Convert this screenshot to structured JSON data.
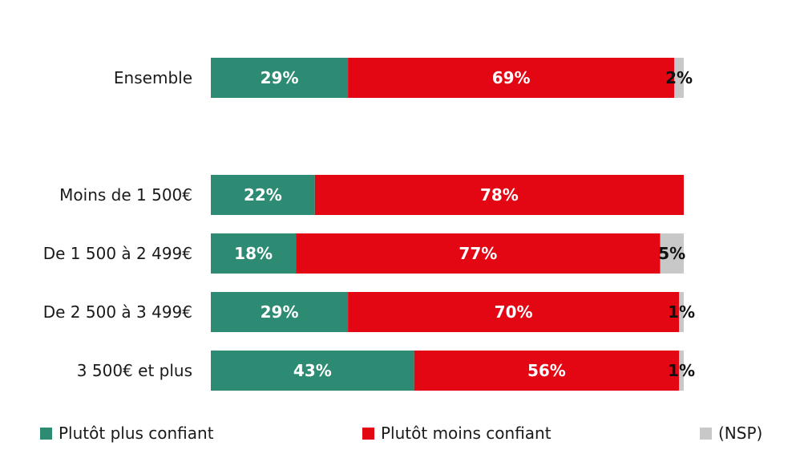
{
  "chart_data": {
    "type": "bar",
    "orientation": "horizontal",
    "stacked": true,
    "categories": [
      "Ensemble",
      "Moins de 1 500€",
      "De 1 500 à 2 499€",
      "De 2 500 à 3 499€",
      "3 500€ et plus"
    ],
    "series": [
      {
        "name": "Plutôt plus confiant",
        "values": [
          29,
          22,
          18,
          29,
          43
        ],
        "labels": [
          "29%",
          "22%",
          "18%",
          "29%",
          "43%"
        ],
        "color": "#2e8b73",
        "label_color": "#ffffff"
      },
      {
        "name": "Plutôt moins confiant",
        "values": [
          69,
          78,
          77,
          70,
          56
        ],
        "labels": [
          "69%",
          "78%",
          "77%",
          "70%",
          "56%"
        ],
        "color": "#e30613",
        "label_color": "#ffffff"
      },
      {
        "name": "(NSP)",
        "values": [
          2,
          0,
          5,
          1,
          1
        ],
        "labels": [
          "2%",
          "",
          "5%",
          "1%",
          "1%"
        ],
        "color": "#c8c8c8",
        "label_color": "#111111"
      }
    ],
    "xlim": [
      0,
      100
    ],
    "grid": false,
    "legend_position": "bottom"
  }
}
